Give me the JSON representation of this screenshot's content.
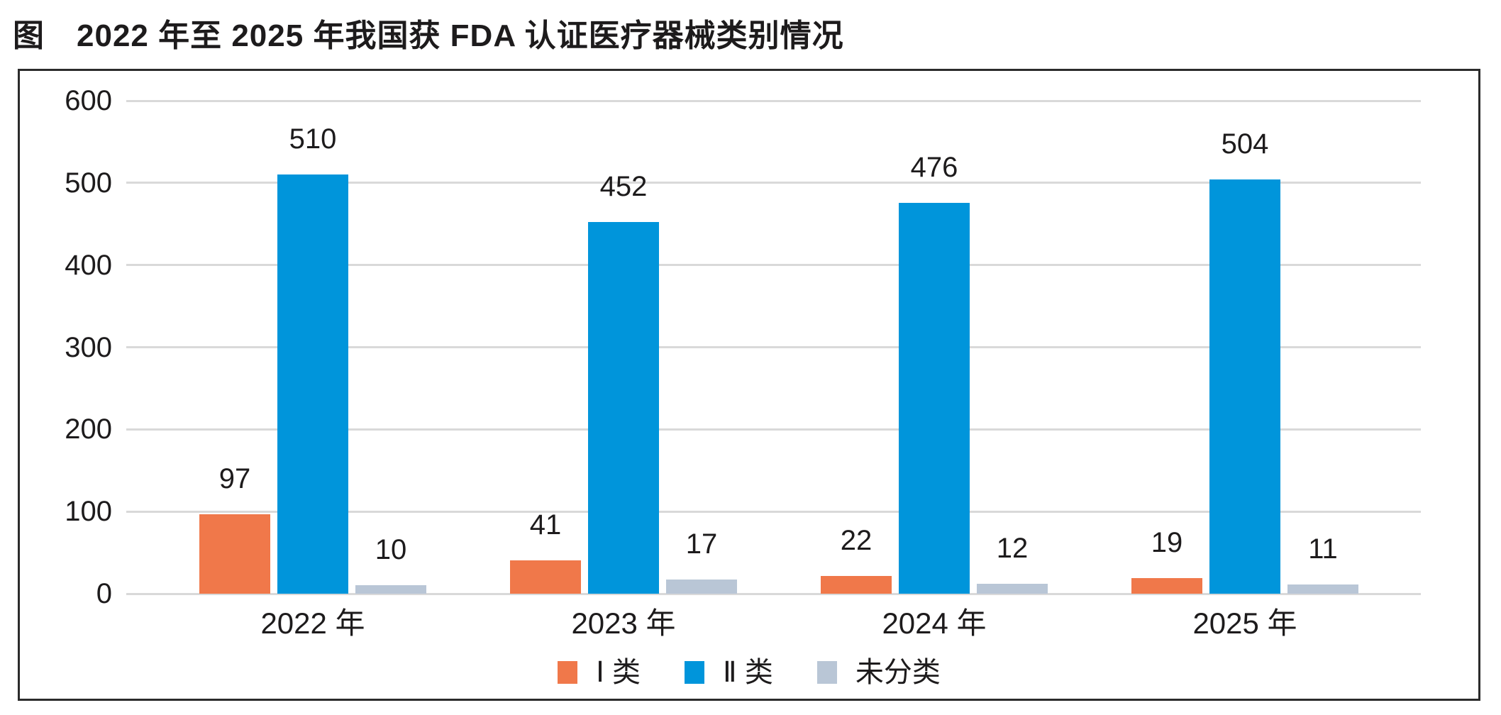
{
  "title": "图　2022 年至 2025 年我国获 FDA 认证医疗器械类别情况",
  "colors": {
    "class1": "#f0784a",
    "class2": "#0095db",
    "unclassified": "#b9c6d6",
    "gridline": "#d9d9d9",
    "border": "#2b2b2b",
    "text": "#1d1b1c"
  },
  "chart_data": {
    "type": "bar",
    "title": "图　2022 年至 2025 年我国获 FDA 认证医疗器械类别情况",
    "categories": [
      "2022 年",
      "2023 年",
      "2024 年",
      "2025 年"
    ],
    "series": [
      {
        "name": "Ⅰ 类",
        "color": "#f0784a",
        "values": [
          97,
          41,
          22,
          19
        ]
      },
      {
        "name": "Ⅱ 类",
        "color": "#0095db",
        "values": [
          510,
          452,
          476,
          504
        ]
      },
      {
        "name": "未分类",
        "color": "#b9c6d6",
        "values": [
          10,
          17,
          12,
          11
        ]
      }
    ],
    "xlabel": "",
    "ylabel": "",
    "ylim": [
      0,
      600
    ],
    "yticks": [
      0,
      100,
      200,
      300,
      400,
      500,
      600
    ],
    "grid": true,
    "legend_position": "bottom",
    "value_labels": true
  }
}
